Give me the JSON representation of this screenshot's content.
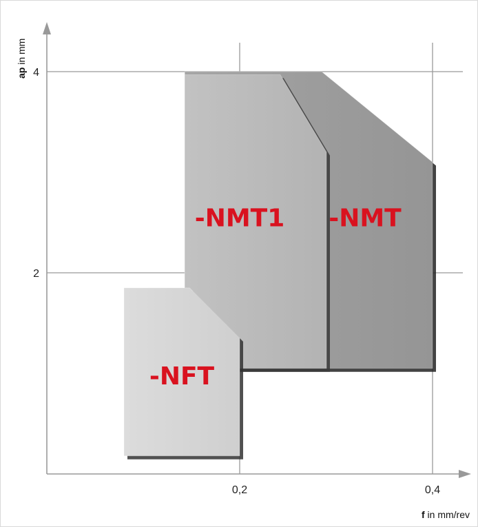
{
  "chart_data": {
    "type": "area",
    "x_axis": {
      "label_bold": "f",
      "label_rest": " in mm/rev",
      "ticks": [
        "0,2",
        "0,4"
      ],
      "tick_values": [
        0.2,
        0.4
      ],
      "range": [
        0,
        0.43
      ]
    },
    "y_axis": {
      "label_bold": "ap",
      "label_rest": " in mm",
      "ticks": [
        "2",
        "4"
      ],
      "tick_values": [
        2,
        4
      ],
      "range": [
        0,
        4.4
      ]
    },
    "grid": true,
    "regions": [
      {
        "name": "-NMT",
        "fill": "#9e9e9e",
        "shadow": "#222222",
        "label_at": [
          0.33,
          2.55
        ],
        "polygon": [
          [
            0.143,
            1.05
          ],
          [
            0.143,
            4.0
          ],
          [
            0.285,
            4.0
          ],
          [
            0.4,
            3.1
          ],
          [
            0.4,
            1.05
          ]
        ]
      },
      {
        "name": "-NMT1",
        "fill": "#b9b9b9",
        "shadow": "#3a3a3a",
        "label_at": [
          0.2,
          2.55
        ],
        "polygon": [
          [
            0.143,
            1.05
          ],
          [
            0.143,
            3.97
          ],
          [
            0.242,
            3.97
          ],
          [
            0.29,
            3.2
          ],
          [
            0.29,
            1.05
          ]
        ]
      },
      {
        "name": "-NFT",
        "fill": "#d5d5d5",
        "shadow": "#333333",
        "label_at": [
          0.14,
          0.98
        ],
        "polygon": [
          [
            0.08,
            0.18
          ],
          [
            0.08,
            1.85
          ],
          [
            0.148,
            1.85
          ],
          [
            0.2,
            1.35
          ],
          [
            0.2,
            0.18
          ]
        ]
      }
    ]
  }
}
